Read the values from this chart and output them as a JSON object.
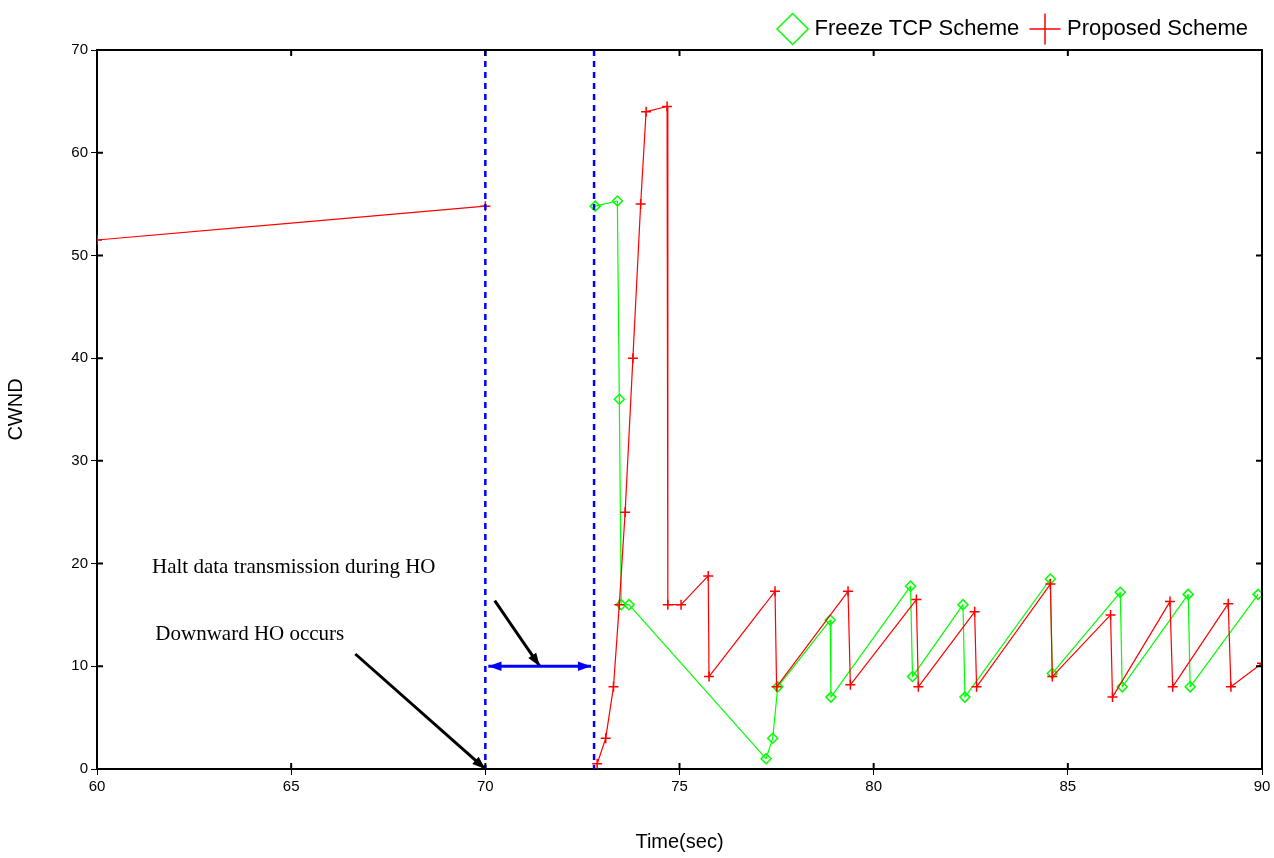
{
  "chart_data": {
    "type": "line",
    "xlabel": "Time(sec)",
    "ylabel": "CWND",
    "xlim": [
      60,
      90
    ],
    "xticks": [
      60,
      65,
      70,
      75,
      80,
      85,
      90
    ],
    "ylim": [
      0,
      70
    ],
    "yticks": [
      0,
      10,
      20,
      30,
      40,
      50,
      60,
      70
    ],
    "grid": false,
    "legend": "top right",
    "series": [
      {
        "name": "Freeze TCP Scheme",
        "color": "#00ff00",
        "marker": "diamond",
        "x": [
          72.83,
          73.4,
          73.45,
          73.5,
          73.7,
          77.23,
          77.4,
          77.53,
          78.88,
          78.9,
          80.95,
          81.0,
          82.3,
          82.35,
          84.55,
          84.6,
          86.35,
          86.4,
          88.1,
          88.15,
          89.9
        ],
        "values": [
          54.8,
          55.3,
          36,
          16,
          16,
          1,
          3,
          8,
          14.5,
          7,
          17.8,
          9,
          16,
          7,
          18.5,
          9.3,
          17.2,
          8,
          17,
          8,
          17
        ]
      },
      {
        "name": "Proposed Scheme",
        "color": "#ff0000",
        "marker": "cross",
        "x": [
          60,
          70,
          71,
          72.88,
          73.1,
          73.3,
          73.45,
          73.6,
          73.8,
          74.0,
          74.14,
          74.68,
          74.7,
          75.04,
          75.74,
          75.76,
          77.46,
          77.5,
          79.34,
          79.4,
          81.1,
          81.15,
          82.6,
          82.65,
          84.55,
          84.6,
          86.1,
          86.15,
          87.63,
          87.7,
          89.13,
          89.2,
          90
        ],
        "values": [
          51.5,
          54.8,
          null,
          0.5,
          3,
          8,
          16,
          25,
          40,
          55,
          64,
          64.5,
          16,
          16,
          18.8,
          9,
          17.3,
          8,
          17.3,
          8.2,
          16.5,
          8,
          15.3,
          8,
          18,
          9,
          15,
          7,
          16.3,
          8,
          16.1,
          8,
          10.3
        ]
      }
    ],
    "ref_lines": [
      {
        "axis": "x",
        "value": 70,
        "color": "#0000ff",
        "line_style": "dashed"
      },
      {
        "axis": "x",
        "value": 72.8,
        "color": "#0000ff",
        "line_style": "dashed"
      }
    ],
    "annotations": [
      {
        "text": "Downward HO occurs",
        "x": 70,
        "y": 0
      },
      "Halt data transmission during HO"
    ]
  }
}
